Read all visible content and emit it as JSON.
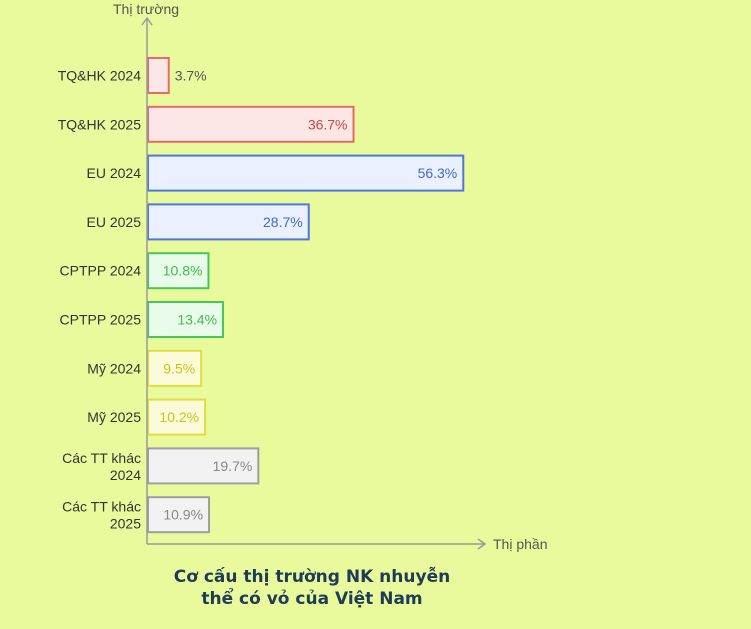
{
  "chart_data": {
    "type": "bar",
    "orientation": "horizontal",
    "title_lines": [
      "Cơ cấu thị trường NK nhuyễn",
      "thể có vỏ của Việt Nam"
    ],
    "ylabel": "Thị trường",
    "xlabel": "Thị phần",
    "categories": [
      "TQ&HK 2024",
      "TQ&HK 2025",
      "EU 2024",
      "EU 2025",
      "CPTPP 2024",
      "CPTPP 2025",
      "Mỹ 2024",
      "Mỹ 2025",
      "Các TT khác 2024",
      "Các TT khác 2025"
    ],
    "values": [
      3.7,
      36.7,
      56.3,
      28.7,
      10.8,
      13.4,
      9.5,
      10.2,
      19.7,
      10.9
    ],
    "value_labels": [
      "3.7%",
      "36.7%",
      "56.3%",
      "28.7%",
      "10.8%",
      "13.4%",
      "9.5%",
      "10.2%",
      "19.7%",
      "10.9%"
    ],
    "bar_fill_colors": [
      "#fde6e6",
      "#fde6e6",
      "#eaf0fd",
      "#eaf0fd",
      "#e9fbe9",
      "#e9fbe9",
      "#fcfbd9",
      "#fcfbd9",
      "#f2f2f2",
      "#f2f2f2"
    ],
    "bar_stroke_colors": [
      "#e66a6a",
      "#e66a6a",
      "#4d78d6",
      "#4d78d6",
      "#47c75a",
      "#47c75a",
      "#dede3c",
      "#dede3c",
      "#9e9e9e",
      "#9e9e9e"
    ],
    "label_colors": [
      "#555555",
      "#d04545",
      "#3d6cc9",
      "#3d6cc9",
      "#3bbd4f",
      "#3bbd4f",
      "#c6c61c",
      "#c6c61c",
      "#888888",
      "#888888"
    ],
    "grid": false,
    "legend": "none"
  }
}
